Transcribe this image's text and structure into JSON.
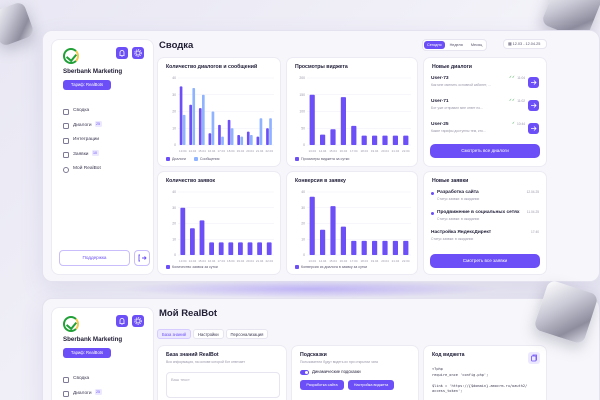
{
  "sidebar": {
    "brand": "Sberbank Marketing",
    "tariff_label": "Тариф: RealBots",
    "items": [
      {
        "label": "Сводка",
        "badge": ""
      },
      {
        "label": "Диалоги",
        "badge": "25"
      },
      {
        "label": "Интеграции",
        "badge": ""
      },
      {
        "label": "Заявки",
        "badge": "10"
      },
      {
        "label": "Мой RealBot",
        "badge": ""
      }
    ],
    "support_label": "Поддержка"
  },
  "dashboard": {
    "title": "Сводка",
    "periods": [
      "Сегодня",
      "Неделя",
      "Месяц"
    ],
    "date_range": "12.03 - 12.04.25"
  },
  "cards": {
    "dialogs": {
      "title": "Количество диалогов и сообщений",
      "legend": [
        "Диалоги",
        "Сообщения"
      ]
    },
    "views": {
      "title": "Просмотры виджета",
      "legend": [
        "Просмотры виджета за сутки"
      ]
    },
    "requests_count": {
      "title": "Количество заявок",
      "legend": [
        "Количество заявок за сутки"
      ]
    },
    "conversion": {
      "title": "Конверсия в заявку",
      "legend": [
        "Конверсия из диалога в заявку за сутки"
      ]
    }
  },
  "new_dialogs": {
    "title": "Новые диалоги",
    "items": [
      {
        "user": "User-73",
        "text": "Как мне сменить основной кабинет, ...",
        "time": "11:04"
      },
      {
        "user": "User-71",
        "text": "Бот уже отправил мне ответ но...",
        "time": "11:02"
      },
      {
        "user": "User-25",
        "text": "Какие тарифы доступны тем, кто...",
        "time": "10:44"
      }
    ],
    "all_button": "Смотреть все диалоги"
  },
  "new_requests": {
    "title": "Новые заявки",
    "items": [
      {
        "title": "Разработка сайта",
        "sub": "Статус заявки: в ожидании",
        "time": "12.04.25"
      },
      {
        "title": "Продвижение в социальных сетях",
        "sub": "Статус заявки: в ожидании",
        "time": "11.04.25"
      },
      {
        "title": "Настройка ЯндексДирект",
        "sub": "Статус заявки: в ожидании",
        "time": "17:40"
      }
    ],
    "all_button": "Смотреть все заявки"
  },
  "realbot": {
    "title": "Мой RealBot",
    "tabs": [
      "База знаний",
      "Настройки",
      "Персонализация"
    ],
    "kb": {
      "title": "База знаний RealBot",
      "sub": "Вся информация, на основе которой бот отвечает",
      "placeholder": "Ваш текст"
    },
    "hints": {
      "title": "Подсказки",
      "sub": "Пользователи будут видеть их при открытии чата",
      "toggle_label": "Динамические подсказки",
      "buttons": [
        "Разработка сайта",
        "Настройка виджета"
      ]
    },
    "widget": {
      "title": "Код виджета",
      "code": "<?php\nrequire_once 'config.php';\n\n$link = 'https://{$domain}.amocrm.ru/oauth2/\naccess_token';\n\n$data = [\n  'client_id' => $client_id,"
    }
  },
  "chart_data": [
    {
      "type": "bar",
      "title": "Количество диалогов и сообщений",
      "categories": [
        "13.04",
        "14.04",
        "15.04",
        "16.04",
        "17.04",
        "18.04",
        "19.04",
        "20.04",
        "21.04",
        "22.04"
      ],
      "series": [
        {
          "name": "Диалоги",
          "values": [
            35,
            24,
            22,
            7,
            12,
            15,
            6,
            8,
            5,
            10
          ]
        },
        {
          "name": "Сообщения",
          "values": [
            18,
            34,
            30,
            20,
            5,
            10,
            5,
            6,
            16,
            16
          ]
        }
      ],
      "ylim": [
        0,
        40
      ],
      "yticks": [
        0,
        10,
        20,
        30,
        40
      ]
    },
    {
      "type": "bar",
      "title": "Просмотры виджета",
      "categories": [
        "13.04",
        "14.04",
        "15.04",
        "16.04",
        "17.04",
        "18.04",
        "19.04",
        "20.04",
        "21.04",
        "22.04"
      ],
      "series": [
        {
          "name": "Просмотры виджета за сутки",
          "values": [
            150,
            31,
            47,
            143,
            57,
            28,
            28,
            28,
            28,
            28
          ]
        }
      ],
      "ylim": [
        0,
        200
      ],
      "yticks": [
        0,
        50,
        100,
        150,
        200
      ]
    },
    {
      "type": "bar",
      "title": "Количество заявок",
      "categories": [
        "13.04",
        "14.04",
        "15.04",
        "16.04",
        "17.04",
        "18.04",
        "19.04",
        "20.04",
        "21.04",
        "22.04"
      ],
      "series": [
        {
          "name": "Количество заявок за сутки",
          "values": [
            30,
            17,
            22,
            8,
            8,
            8,
            8,
            8,
            8,
            8
          ]
        }
      ],
      "ylim": [
        0,
        40
      ],
      "yticks": [
        0,
        10,
        20,
        30,
        40
      ]
    },
    {
      "type": "bar",
      "title": "Конверсия в заявку",
      "categories": [
        "13.04",
        "14.04",
        "15.04",
        "16.04",
        "17.04",
        "18.04",
        "19.04",
        "20.04",
        "21.04",
        "22.04"
      ],
      "series": [
        {
          "name": "Конверсия из диалога в заявку за сутки",
          "values": [
            37,
            16,
            31,
            18,
            9,
            9,
            9,
            9,
            9,
            9
          ]
        }
      ],
      "ylim": [
        0,
        40
      ],
      "yticks": [
        0,
        10,
        20,
        30,
        40
      ]
    }
  ]
}
